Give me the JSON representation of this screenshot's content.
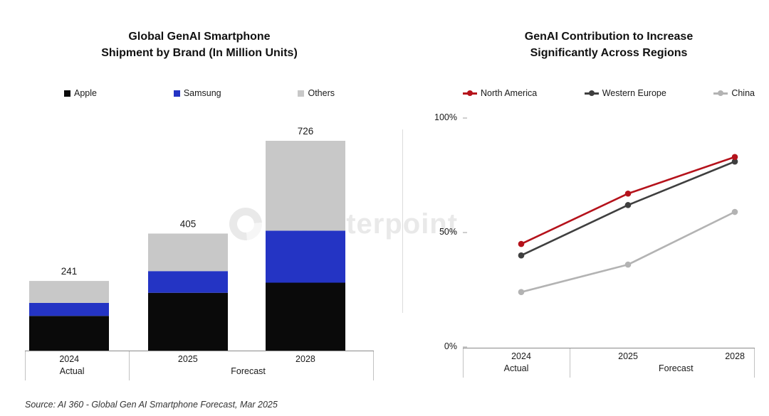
{
  "watermark": "Counterpoint",
  "source": "Source: AI 360 - Global Gen AI Smartphone Forecast, Mar 2025",
  "chart_data": [
    {
      "type": "bar",
      "stacked": true,
      "title": "Global GenAI Smartphone Shipment by Brand (In Million Units)",
      "title_lines": [
        "Global GenAI Smartphone",
        "Shipment by Brand (In Million Units)"
      ],
      "unit": "Million Units",
      "categories": [
        "2024",
        "2025",
        "2028"
      ],
      "category_groups": [
        {
          "label": "Actual",
          "span": 1
        },
        {
          "label": "Forecast",
          "span": 2
        }
      ],
      "series": [
        {
          "name": "Apple",
          "color": "#0a0a0a",
          "values": [
            120,
            200,
            235
          ]
        },
        {
          "name": "Samsung",
          "color": "#2434c4",
          "values": [
            45,
            75,
            180
          ]
        },
        {
          "name": "Others",
          "color": "#c8c8c8",
          "values": [
            76,
            130,
            311
          ]
        }
      ],
      "totals": [
        241,
        405,
        726
      ],
      "ylim": [
        0,
        800
      ],
      "grid": false,
      "legend_position": "top"
    },
    {
      "type": "line",
      "title": "GenAI Contribution to Increase Significantly Across Regions",
      "title_lines": [
        "GenAI Contribution to Increase",
        "Significantly Across Regions"
      ],
      "unit": "%",
      "categories": [
        "2024",
        "2025",
        "2028"
      ],
      "category_groups": [
        {
          "label": "Actual",
          "span": 1
        },
        {
          "label": "Forecast",
          "span": 2
        }
      ],
      "series": [
        {
          "name": "North America",
          "color": "#b5121b",
          "values": [
            45,
            67,
            83
          ]
        },
        {
          "name": "Western Europe",
          "color": "#3f3f3f",
          "values": [
            40,
            62,
            81
          ]
        },
        {
          "name": "China",
          "color": "#b3b3b3",
          "values": [
            24,
            36,
            59
          ]
        }
      ],
      "ytick_labels": [
        "0%",
        "50%",
        "100%"
      ],
      "ytick_values": [
        0,
        50,
        100
      ],
      "ylim": [
        0,
        100
      ],
      "grid": false,
      "legend_position": "top"
    }
  ]
}
